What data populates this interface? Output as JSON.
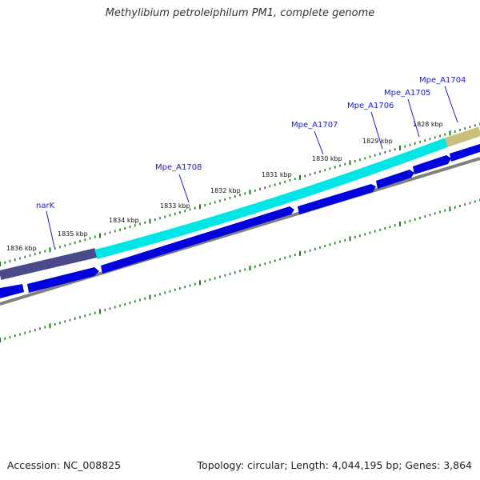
{
  "title": "Methylibium petroleiphilum PM1, complete genome",
  "footer": {
    "accession_label": "Accession:",
    "accession": "NC_008825",
    "topology_label": "Topology:",
    "topology": "circular",
    "length_label": "Length:",
    "length": "4,044,195 bp",
    "genes_label": "Genes:",
    "genes": "3,864"
  },
  "map": {
    "tick_labels": [
      "1836 kbp",
      "1835 kbp",
      "1834 kbp",
      "1833 kbp",
      "1832 kbp",
      "1831 kbp",
      "1830 kbp",
      "1829 kbp",
      "1828 kbp"
    ],
    "gene_labels": [
      "narK",
      "Mpe_A1708",
      "Mpe_A1707",
      "Mpe_A1706",
      "Mpe_A1705",
      "Mpe_A1704"
    ],
    "colors": {
      "tick": "#1e7a1e",
      "gene_label": "#1a1acc",
      "cds_forward": "#0000dd",
      "backbone": "#808080",
      "feature_narK": "#4a4a8a",
      "feature_cyan": "#00e5e5",
      "feature_khaki": "#c8c07a"
    }
  }
}
